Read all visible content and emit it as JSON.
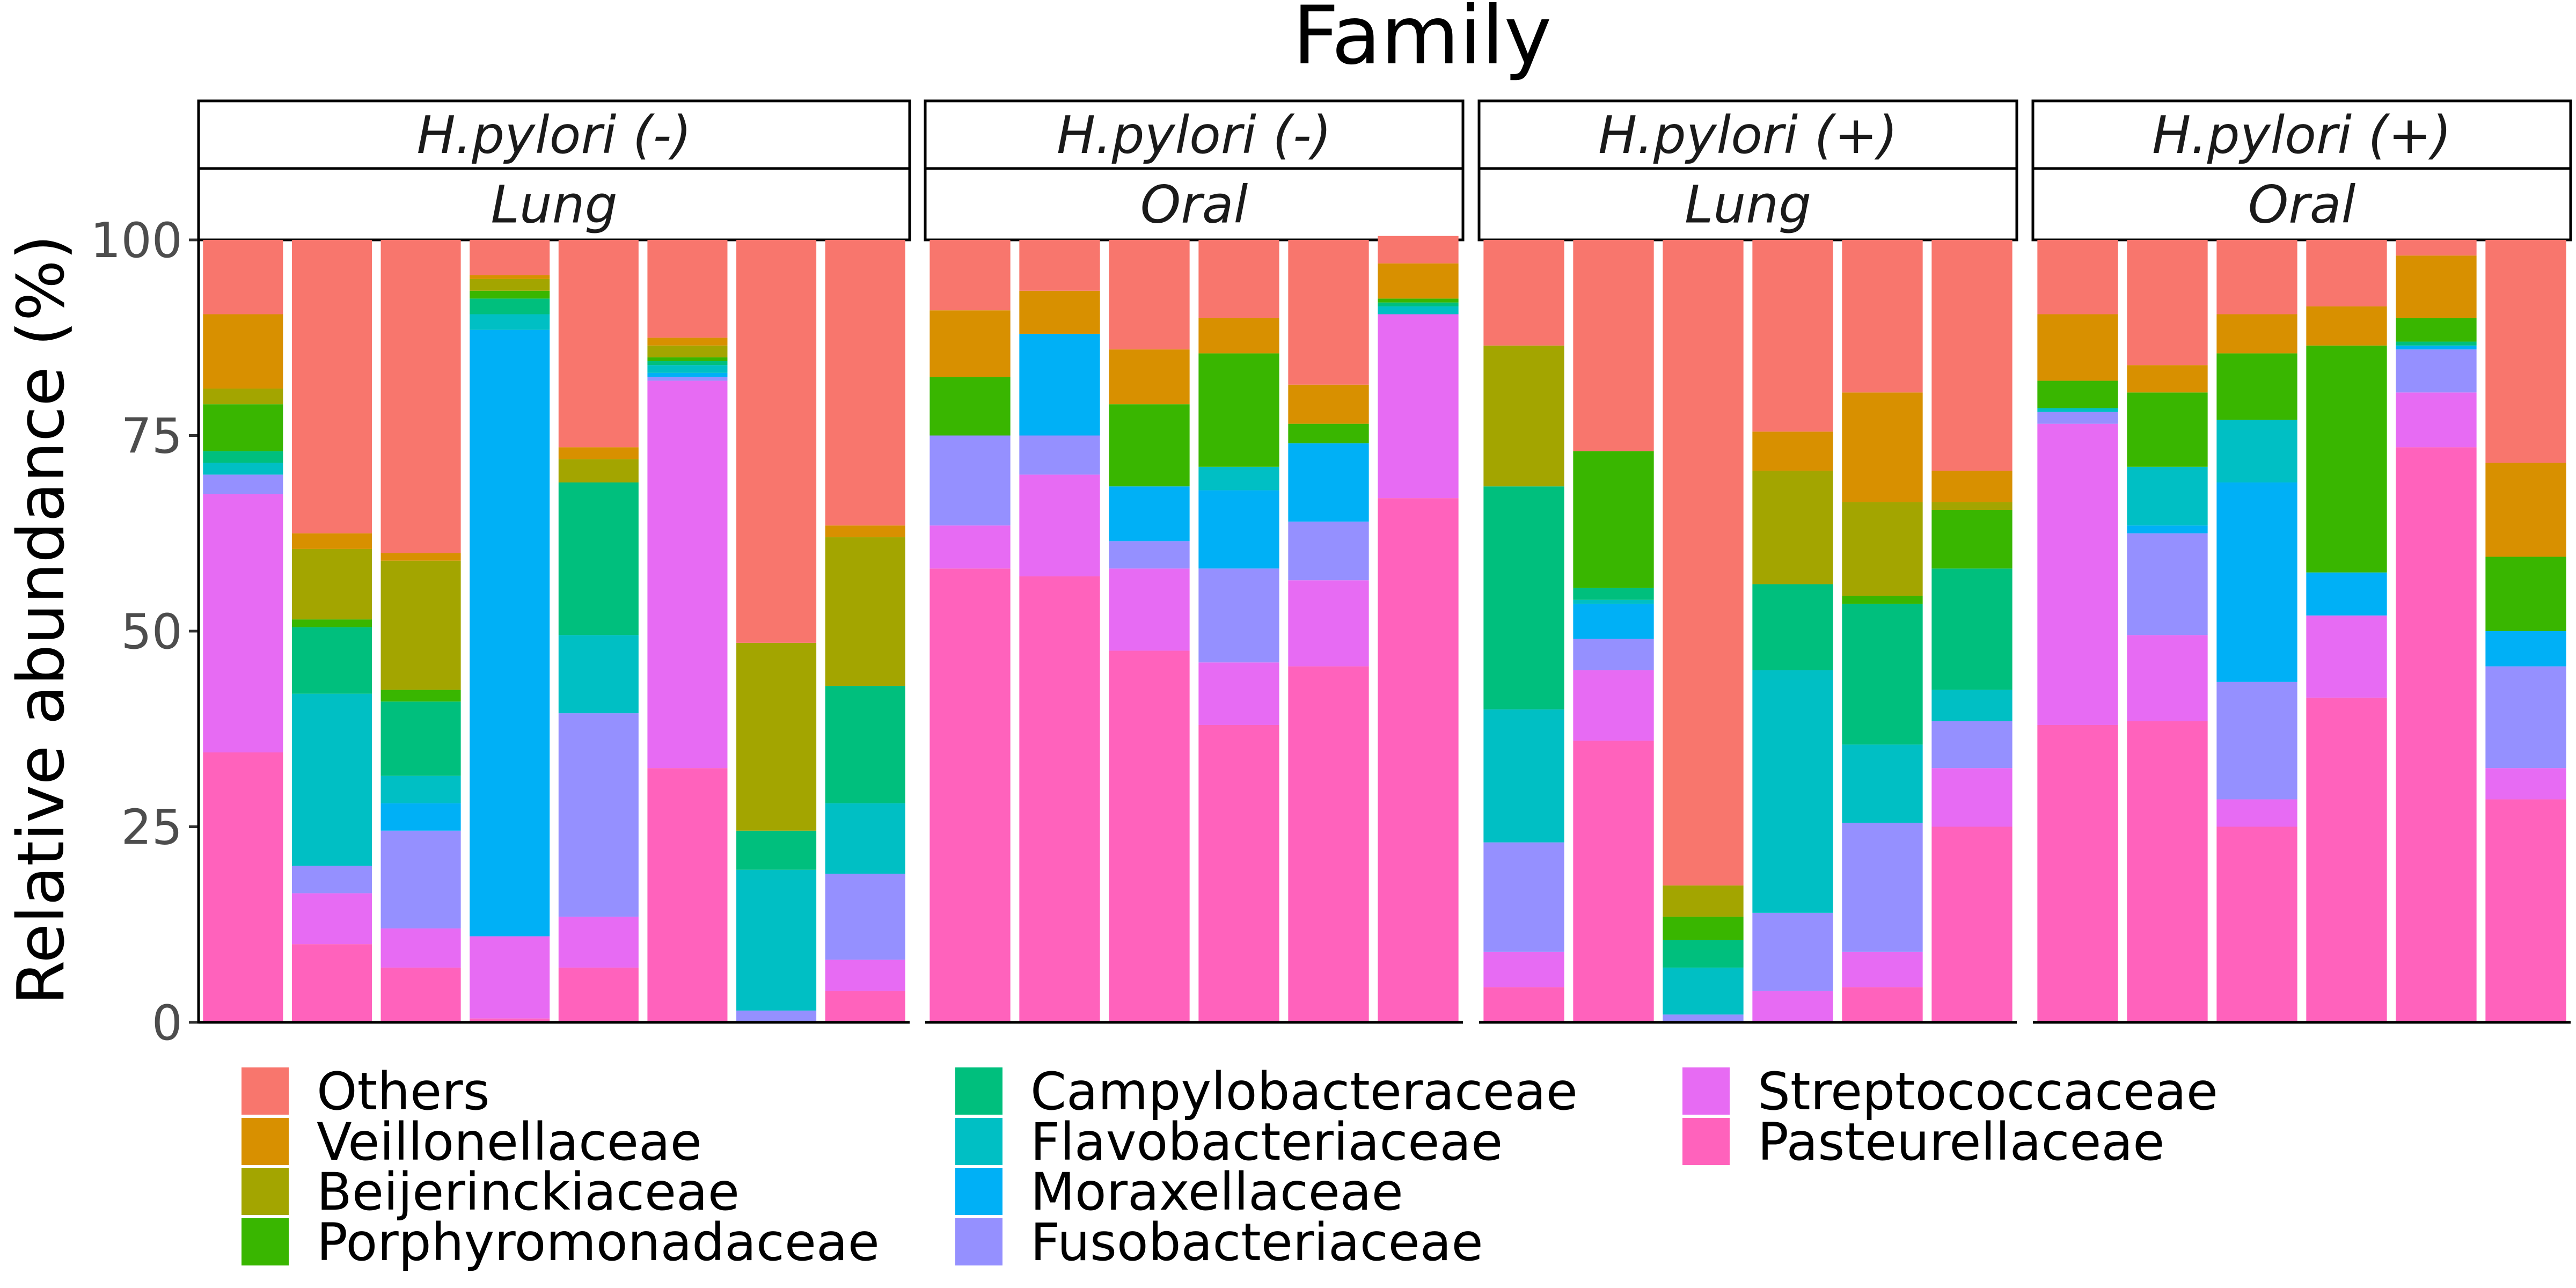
{
  "chart_data": {
    "type": "bar",
    "stacked": true,
    "title": "Family",
    "ylabel": "Relative abundance (%)",
    "xlabel": "",
    "ylim": [
      0,
      100
    ],
    "yticks": [
      0,
      25,
      50,
      75,
      100
    ],
    "legend_position": "bottom",
    "legend": [
      {
        "name": "Others",
        "color": "#F8766D"
      },
      {
        "name": "Veillonellaceae",
        "color": "#D89000"
      },
      {
        "name": "Beijerinckiaceae",
        "color": "#A3A500"
      },
      {
        "name": "Porphyromonadaceae",
        "color": "#39B600"
      },
      {
        "name": "Campylobacteraceae",
        "color": "#00BF7D"
      },
      {
        "name": "Flavobacteriaceae",
        "color": "#00BFC4"
      },
      {
        "name": "Moraxellaceae",
        "color": "#00B0F6"
      },
      {
        "name": "Fusobacteriaceae",
        "color": "#9590FF"
      },
      {
        "name": "Streptococcaceae",
        "color": "#E76BF3"
      },
      {
        "name": "Pasteurellaceae",
        "color": "#FF62BC"
      }
    ],
    "stack_order_bottom_to_top": [
      "Pasteurellaceae",
      "Streptococcaceae",
      "Fusobacteriaceae",
      "Moraxellaceae",
      "Flavobacteriaceae",
      "Campylobacteraceae",
      "Porphyromonadaceae",
      "Beijerinckiaceae",
      "Veillonellaceae",
      "Others"
    ],
    "panels": [
      {
        "strip_top": "H.pylori (-)",
        "strip_bottom": "Lung",
        "samples": [
          [
            34.5,
            33,
            2.5,
            0,
            1.5,
            1.5,
            6,
            2,
            9.5,
            9.5
          ],
          [
            10,
            6.5,
            3.5,
            0,
            22,
            8.5,
            1,
            9,
            2,
            37.5
          ],
          [
            7,
            5,
            12.5,
            3.5,
            3.5,
            9.5,
            1.5,
            16.5,
            1,
            40
          ],
          [
            0.5,
            10.5,
            0,
            77.5,
            2,
            2,
            1,
            1.5,
            0.5,
            4.5
          ],
          [
            7,
            6.5,
            26,
            0,
            10,
            19.5,
            0,
            3,
            1.5,
            26.5
          ],
          [
            32.5,
            49.5,
            0.5,
            0.5,
            1,
            0.5,
            0.5,
            1.5,
            1,
            12.5
          ],
          [
            0,
            0,
            1.5,
            0,
            18,
            5,
            0,
            24,
            0,
            51.5
          ],
          [
            4,
            4,
            11,
            0,
            9,
            15,
            0,
            19,
            1.5,
            36.5
          ]
        ]
      },
      {
        "strip_top": "H.pylori (-)",
        "strip_bottom": "Oral",
        "samples": [
          [
            58,
            5.5,
            11.5,
            0,
            0,
            0,
            7.5,
            0,
            8.5,
            9
          ],
          [
            57,
            13,
            5,
            13,
            0,
            0,
            0,
            0,
            5.5,
            6.5
          ],
          [
            47.5,
            10.5,
            3.5,
            7,
            0,
            0,
            10.5,
            0,
            7,
            14
          ],
          [
            38,
            8,
            12,
            10,
            3,
            0,
            14.5,
            0,
            4.5,
            10
          ],
          [
            45.5,
            11,
            7.5,
            10,
            0,
            0,
            2.5,
            0,
            5,
            18.5
          ],
          [
            67,
            23.5,
            0,
            0,
            1,
            0.5,
            0.5,
            0,
            4.5,
            3.5
          ]
        ]
      },
      {
        "strip_top": "H.pylori (+)",
        "strip_bottom": "Lung",
        "samples": [
          [
            4.5,
            4.5,
            14,
            0,
            17,
            28.5,
            0,
            18,
            0,
            13.5
          ],
          [
            36,
            9,
            4,
            4.5,
            0.5,
            1.5,
            17.5,
            0,
            0,
            27
          ],
          [
            0,
            0,
            1,
            0,
            6,
            3.5,
            3,
            4,
            0,
            82.5
          ],
          [
            0,
            4,
            10,
            0,
            31,
            11,
            0,
            14.5,
            5,
            24.5
          ],
          [
            4.5,
            4.5,
            16.5,
            0,
            10,
            18,
            1,
            12,
            14,
            19.5
          ],
          [
            25,
            7.5,
            6,
            0,
            4,
            15.5,
            7.5,
            1,
            4,
            29.5
          ]
        ]
      },
      {
        "strip_top": "H.pylori (+)",
        "strip_bottom": "Oral",
        "samples": [
          [
            38,
            38.5,
            1.5,
            0,
            0.5,
            0,
            3.5,
            0,
            8.5,
            9.5
          ],
          [
            38.5,
            11,
            13,
            1,
            7.5,
            0,
            9.5,
            0,
            3.5,
            16
          ],
          [
            25,
            3.5,
            15,
            25.5,
            8,
            0,
            8.5,
            0,
            5,
            9.5
          ],
          [
            41.5,
            10.5,
            0,
            5.5,
            0,
            0,
            29,
            0,
            5,
            8.5
          ],
          [
            73.5,
            7,
            5.5,
            0.5,
            0,
            0.5,
            3,
            0,
            8,
            2
          ],
          [
            28.5,
            4,
            13,
            4.5,
            0,
            0,
            9.5,
            0,
            12,
            28.5
          ]
        ]
      }
    ]
  }
}
